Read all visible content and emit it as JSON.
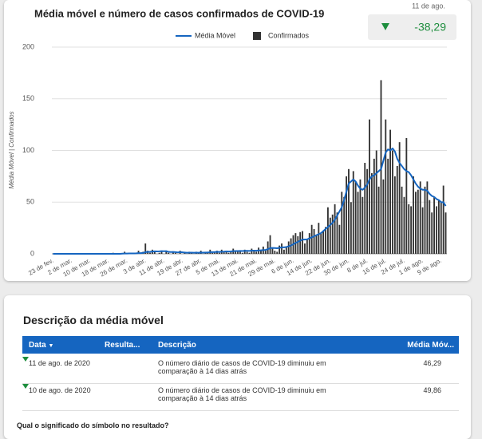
{
  "chart_data": {
    "type": "combo",
    "title": "Média móvel e número de casos confirmados de COVID-19",
    "y_label": "Média Móvel | Confirmados",
    "categories": [
      "23 de fev.",
      null,
      null,
      null,
      null,
      null,
      null,
      null,
      "2 de mar.",
      null,
      null,
      null,
      null,
      null,
      null,
      null,
      "10 de mar.",
      null,
      null,
      null,
      null,
      null,
      null,
      null,
      "18 de mar.",
      null,
      null,
      null,
      null,
      null,
      null,
      null,
      "26 de mar.",
      null,
      null,
      null,
      null,
      null,
      null,
      null,
      "3 de abr.",
      null,
      null,
      null,
      null,
      null,
      null,
      null,
      "11 de abr.",
      null,
      null,
      null,
      null,
      null,
      null,
      null,
      "19 de abr.",
      null,
      null,
      null,
      null,
      null,
      null,
      null,
      "27 de abr.",
      null,
      null,
      null,
      null,
      null,
      null,
      null,
      "5 de mai.",
      null,
      null,
      null,
      null,
      null,
      null,
      null,
      "13 de mai.",
      null,
      null,
      null,
      null,
      null,
      null,
      null,
      "21 de mai.",
      null,
      null,
      null,
      null,
      null,
      null,
      null,
      "29 de mai.",
      null,
      null,
      null,
      null,
      null,
      null,
      null,
      "6 de jun.",
      null,
      null,
      null,
      null,
      null,
      null,
      null,
      "14 de jun.",
      null,
      null,
      null,
      null,
      null,
      null,
      null,
      "22 de jun.",
      null,
      null,
      null,
      null,
      null,
      null,
      null,
      "30 de jun.",
      null,
      null,
      null,
      null,
      null,
      null,
      null,
      "8 de jul.",
      null,
      null,
      null,
      null,
      null,
      null,
      null,
      "16 de jul.",
      null,
      null,
      null,
      null,
      null,
      null,
      null,
      "24 de jul.",
      null,
      null,
      null,
      null,
      null,
      null,
      null,
      "1 de ago.",
      null,
      null,
      null,
      null,
      null,
      null,
      null,
      "9 de ago.",
      null,
      null
    ],
    "series": [
      {
        "name": "Média Móvel",
        "type": "line",
        "color": "#1565c0",
        "values": [
          0,
          0,
          0,
          0,
          0,
          0,
          0,
          0,
          0,
          0,
          0,
          0,
          0,
          0,
          0,
          0,
          0,
          0,
          0,
          0,
          0,
          0,
          0,
          0,
          0,
          0,
          0,
          0,
          0,
          0,
          0.2,
          0.3,
          0.3,
          0.4,
          0.4,
          0.4,
          0.5,
          0.7,
          0.7,
          0.9,
          1.6,
          1.8,
          1.9,
          2.2,
          2.4,
          2.3,
          2.4,
          2.6,
          2.5,
          2.6,
          1.9,
          1.7,
          1.8,
          1.6,
          1.4,
          1.6,
          1.5,
          1.3,
          1.1,
          1.2,
          1.2,
          1.1,
          1.2,
          1.1,
          1.3,
          1.2,
          1.3,
          1.3,
          1.6,
          1.6,
          1.7,
          1.9,
          1.8,
          2.0,
          2.1,
          2.3,
          2.2,
          2.3,
          2.6,
          2.7,
          2.7,
          2.8,
          2.7,
          2.9,
          2.9,
          2.8,
          3.1,
          3.1,
          3.0,
          3.3,
          3.4,
          3.7,
          3.8,
          4.5,
          5.6,
          5.7,
          5.6,
          5.4,
          5.8,
          6.3,
          6.3,
          6.6,
          7.3,
          8.1,
          9.3,
          10.6,
          11.5,
          12.7,
          13.8,
          13.8,
          14,
          15,
          16,
          17,
          18,
          19,
          20,
          22,
          24,
          26,
          28,
          30,
          33,
          37,
          41,
          45,
          52,
          60,
          68,
          70,
          72,
          70,
          66,
          63,
          62,
          64,
          67,
          72,
          75,
          76,
          78,
          80,
          82,
          90,
          98,
          101,
          100,
          102,
          99,
          92,
          88,
          85,
          82,
          80,
          79,
          76,
          72,
          68,
          65,
          63,
          62,
          62,
          61,
          58,
          56,
          55,
          53,
          52,
          50,
          49.86,
          46.29
        ]
      },
      {
        "name": "Confirmados",
        "type": "bar",
        "color": "#333333",
        "values": [
          0,
          0,
          0,
          0,
          0,
          0,
          0,
          0,
          0,
          0,
          0,
          0,
          0,
          0,
          0,
          0,
          0,
          0,
          0,
          0,
          0,
          0,
          0,
          0,
          0,
          0,
          1,
          0,
          0,
          0,
          0,
          2,
          0,
          1,
          0,
          0,
          1,
          3,
          0,
          2,
          10,
          3,
          1,
          4,
          2,
          0,
          1,
          3,
          0,
          2,
          1,
          0,
          2,
          1,
          0,
          3,
          0,
          1,
          0,
          2,
          1,
          0,
          2,
          1,
          3,
          0,
          1,
          2,
          4,
          1,
          2,
          3,
          1,
          4,
          2,
          3,
          1,
          2,
          5,
          3,
          2,
          3,
          1,
          4,
          2,
          1,
          5,
          3,
          2,
          6,
          4,
          7,
          3,
          12,
          18,
          5,
          3,
          2,
          8,
          10,
          4,
          7,
          12,
          15,
          18,
          20,
          17,
          21,
          22,
          10,
          14,
          20,
          28,
          24,
          18,
          30,
          20,
          22,
          26,
          45,
          35,
          38,
          48,
          40,
          28,
          60,
          55,
          75,
          82,
          50,
          80,
          70,
          60,
          72,
          55,
          88,
          82,
          130,
          78,
          92,
          100,
          65,
          168,
          72,
          130,
          92,
          120,
          100,
          75,
          85,
          108,
          65,
          55,
          112,
          48,
          46,
          75,
          60,
          62,
          70,
          45,
          65,
          70,
          52,
          40,
          55,
          46,
          52,
          50,
          66,
          40
        ]
      }
    ],
    "ylim": [
      0,
      200
    ],
    "yticks": [
      0,
      50,
      100,
      150,
      200
    ],
    "grid": true,
    "legend": "top"
  },
  "kpi": {
    "date": "11 de ago.",
    "value": "-38,29"
  },
  "table": {
    "title": "Descrição da média móvel",
    "columns": [
      "Data",
      "Resulta...",
      "Descrição",
      "Média Móv..."
    ],
    "rows": [
      [
        "11 de ago. de 2020",
        "O número diário de casos de COVID-19 diminuiu em comparação à 14 dias atrás",
        "46,29"
      ],
      [
        "10 de ago. de 2020",
        "O número diário de casos de COVID-19 diminuiu em comparação à 14 dias atrás",
        "49,86"
      ]
    ]
  },
  "footer": {
    "question": "Qual o significado do símbolo no resultado?"
  }
}
